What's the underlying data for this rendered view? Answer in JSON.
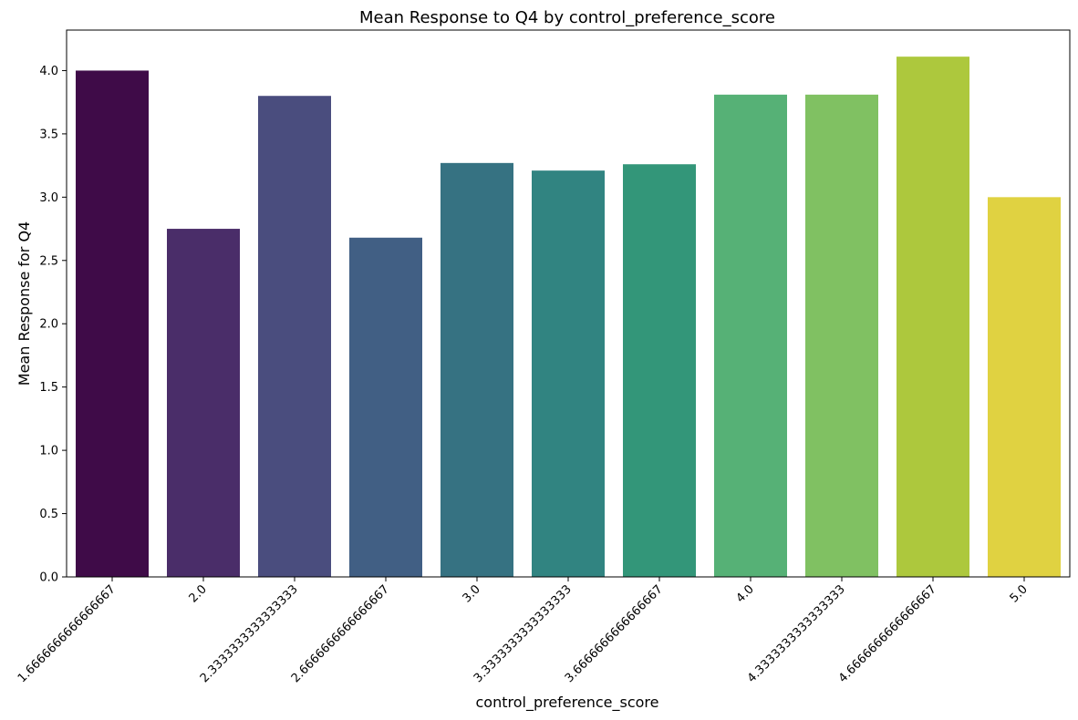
{
  "chart_data": {
    "type": "bar",
    "title": "Mean Response to Q4 by control_preference_score",
    "xlabel": "control_preference_score",
    "ylabel": "Mean Response for Q4",
    "categories": [
      "1.6666666666666667",
      "2.0",
      "2.3333333333333333",
      "2.6666666666666667",
      "3.0",
      "3.3333333333333333",
      "3.6666666666666667",
      "4.0",
      "4.3333333333333333",
      "4.6666666666666667",
      "5.0"
    ],
    "values": [
      4.0,
      2.75,
      3.8,
      2.68,
      3.27,
      3.21,
      3.26,
      3.81,
      3.81,
      4.11,
      3.0
    ],
    "colors": [
      "#440154",
      "#482878",
      "#3e4989",
      "#31688e",
      "#26828e",
      "#1f9e89",
      "#35b779",
      "#6ece58",
      "#b5de2b",
      "#fde725",
      "#fde725"
    ],
    "bar_colors": [
      "#3f0b48",
      "#4a2d69",
      "#4a4d7e",
      "#415f84",
      "#367282",
      "#318481",
      "#339679",
      "#56b176",
      "#80c162",
      "#adc83d",
      "#e0d241"
    ],
    "ylim": [
      0,
      4.32
    ],
    "yticks": [
      0.0,
      0.5,
      1.0,
      1.5,
      2.0,
      2.5,
      3.0,
      3.5,
      4.0
    ],
    "ytick_labels": [
      "0.0",
      "0.5",
      "1.0",
      "1.5",
      "2.0",
      "2.5",
      "3.0",
      "3.5",
      "4.0"
    ],
    "grid": false
  }
}
